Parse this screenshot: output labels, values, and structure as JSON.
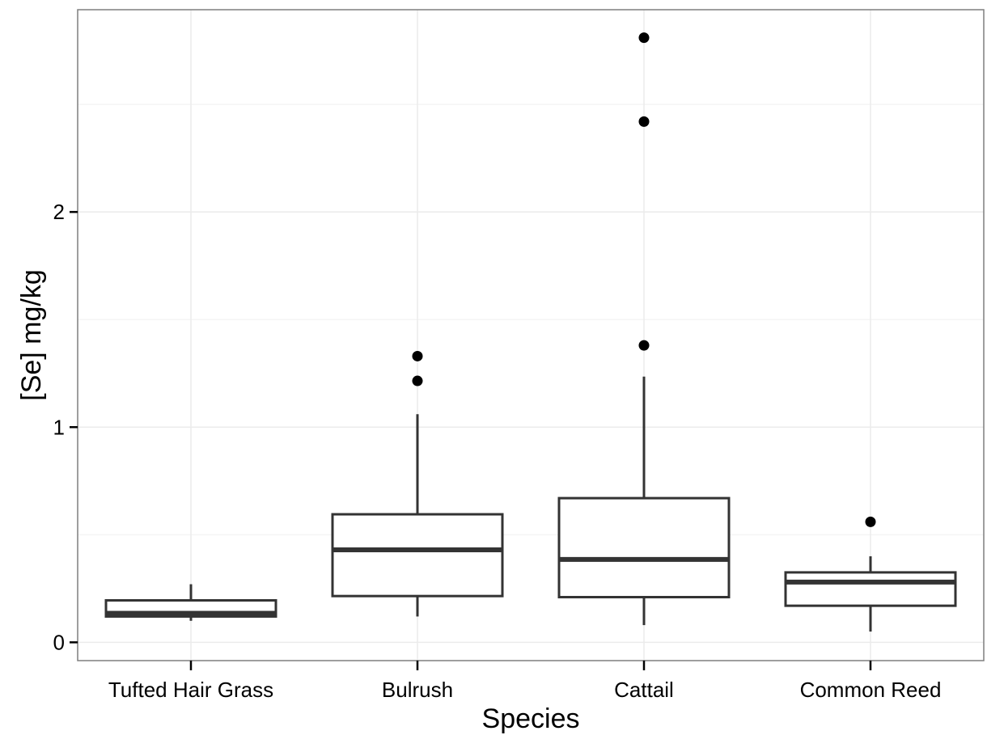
{
  "chart_data": {
    "type": "boxplot",
    "title": "",
    "xlabel": "Species",
    "ylabel": "[Se] mg/kg",
    "ylim": [
      -0.085,
      2.94
    ],
    "y_ticks": [
      0,
      1,
      2
    ],
    "y_tick_labels": [
      "0",
      "1",
      "2"
    ],
    "grid": true,
    "legend": "none",
    "categories": [
      "Tufted Hair Grass",
      "Bulrush",
      "Cattail",
      "Common Reed"
    ],
    "boxes": [
      {
        "category": "Tufted Hair Grass",
        "whisker_low": 0.1,
        "q1": 0.12,
        "median": 0.135,
        "q3": 0.195,
        "whisker_high": 0.27,
        "outliers": []
      },
      {
        "category": "Bulrush",
        "whisker_low": 0.12,
        "q1": 0.215,
        "median": 0.43,
        "q3": 0.595,
        "whisker_high": 1.06,
        "outliers": [
          1.215,
          1.33
        ]
      },
      {
        "category": "Cattail",
        "whisker_low": 0.08,
        "q1": 0.21,
        "median": 0.385,
        "q3": 0.67,
        "whisker_high": 1.235,
        "outliers": [
          1.38,
          2.42,
          2.81
        ]
      },
      {
        "category": "Common Reed",
        "whisker_low": 0.05,
        "q1": 0.17,
        "median": 0.28,
        "q3": 0.325,
        "whisker_high": 0.4,
        "outliers": [
          0.56
        ]
      }
    ],
    "colors": {
      "panel_border": "#7f7f7f",
      "grid_major": "#ebebeb",
      "grid_minor": "#f5f5f5",
      "box_stroke": "#333333",
      "point": "#000000"
    }
  }
}
